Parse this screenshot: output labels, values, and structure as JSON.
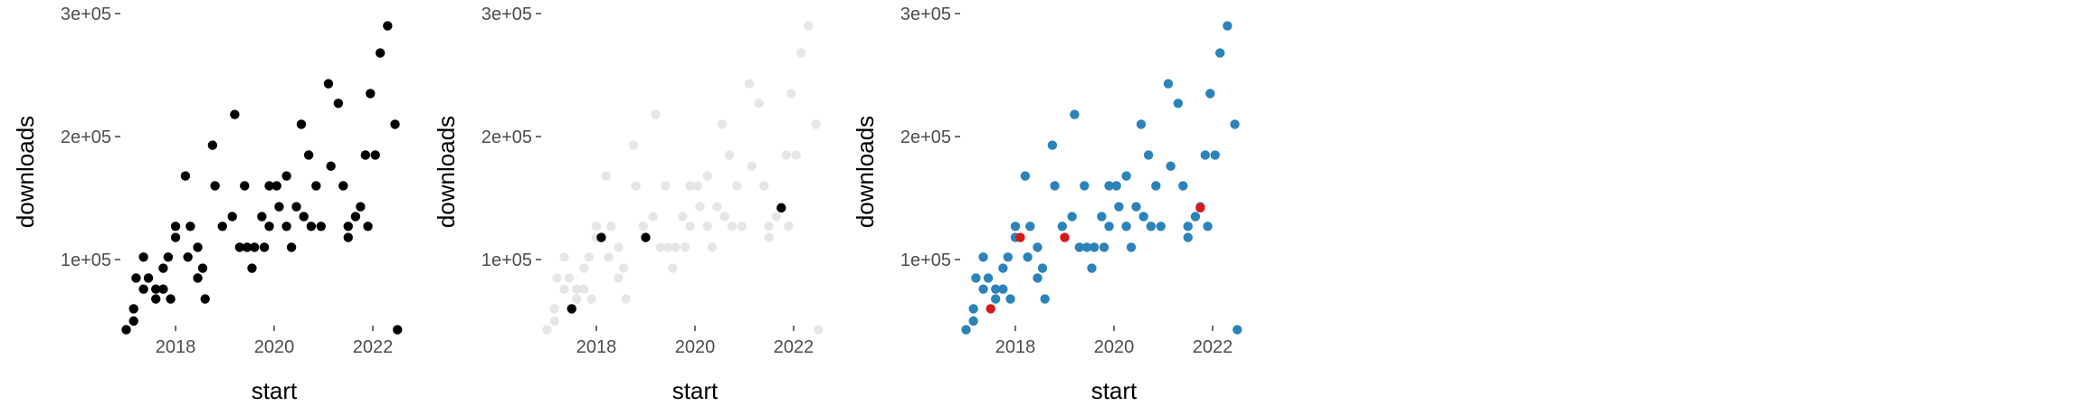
{
  "chart_data": [
    {
      "type": "scatter",
      "panel": "left",
      "xlabel": "start",
      "ylabel": "downloads",
      "x_ticks": [
        2018,
        2020,
        2022
      ],
      "y_ticks": [
        100000,
        200000,
        300000
      ],
      "y_tick_labels": [
        "1e+05",
        "2e+05",
        "3e+05"
      ],
      "xlim": [
        2016.8,
        2022.7
      ],
      "ylim": [
        35000,
        305000
      ],
      "grid": false,
      "point_color": "#000000",
      "highlight_color": "#000000",
      "highlight_points": []
    },
    {
      "type": "scatter",
      "panel": "middle",
      "xlabel": "start",
      "ylabel": "downloads",
      "x_ticks": [
        2018,
        2020,
        2022
      ],
      "y_ticks": [
        100000,
        200000,
        300000
      ],
      "y_tick_labels": [
        "1e+05",
        "2e+05",
        "3e+05"
      ],
      "xlim": [
        2016.8,
        2022.7
      ],
      "ylim": [
        35000,
        305000
      ],
      "grid": false,
      "point_color": "#e6e6e6",
      "highlight_color": "#000000",
      "highlight_points": [
        [
          2017.5,
          60000
        ],
        [
          2018.1,
          118000
        ],
        [
          2019.0,
          118000
        ],
        [
          2021.75,
          142000
        ]
      ]
    },
    {
      "type": "scatter",
      "panel": "right",
      "xlabel": "start",
      "ylabel": "downloads",
      "x_ticks": [
        2018,
        2020,
        2022
      ],
      "y_ticks": [
        100000,
        200000,
        300000
      ],
      "y_tick_labels": [
        "1e+05",
        "2e+05",
        "3e+05"
      ],
      "xlim": [
        2016.8,
        2022.7
      ],
      "ylim": [
        35000,
        305000
      ],
      "grid": false,
      "point_color": "#2b83ba",
      "highlight_color": "#d7191c",
      "highlight_points": [
        [
          2017.5,
          60000
        ],
        [
          2018.1,
          118000
        ],
        [
          2019.0,
          118000
        ],
        [
          2021.75,
          142000
        ]
      ]
    }
  ],
  "points": [
    [
      2017.0,
      43000
    ],
    [
      2017.15,
      50000
    ],
    [
      2017.15,
      60000
    ],
    [
      2017.2,
      85000
    ],
    [
      2017.35,
      102000
    ],
    [
      2017.35,
      76000
    ],
    [
      2017.45,
      85000
    ],
    [
      2017.6,
      68000
    ],
    [
      2017.6,
      76000
    ],
    [
      2017.75,
      76000
    ],
    [
      2017.75,
      93000
    ],
    [
      2017.85,
      102000
    ],
    [
      2017.9,
      68000
    ],
    [
      2018.0,
      127000
    ],
    [
      2018.0,
      118000
    ],
    [
      2018.2,
      168000
    ],
    [
      2018.25,
      102000
    ],
    [
      2018.3,
      127000
    ],
    [
      2018.45,
      110000
    ],
    [
      2018.45,
      85000
    ],
    [
      2018.55,
      93000
    ],
    [
      2018.6,
      68000
    ],
    [
      2018.75,
      193000
    ],
    [
      2018.8,
      160000
    ],
    [
      2018.95,
      127000
    ],
    [
      2019.15,
      135000
    ],
    [
      2019.2,
      218000
    ],
    [
      2019.3,
      110000
    ],
    [
      2019.4,
      160000
    ],
    [
      2019.45,
      110000
    ],
    [
      2019.55,
      93000
    ],
    [
      2019.6,
      110000
    ],
    [
      2019.75,
      135000
    ],
    [
      2019.8,
      110000
    ],
    [
      2019.9,
      160000
    ],
    [
      2019.9,
      127000
    ],
    [
      2020.05,
      160000
    ],
    [
      2020.1,
      143000
    ],
    [
      2020.25,
      168000
    ],
    [
      2020.25,
      127000
    ],
    [
      2020.35,
      110000
    ],
    [
      2020.45,
      143000
    ],
    [
      2020.55,
      210000
    ],
    [
      2020.6,
      135000
    ],
    [
      2020.7,
      185000
    ],
    [
      2020.75,
      127000
    ],
    [
      2020.85,
      160000
    ],
    [
      2020.95,
      127000
    ],
    [
      2021.1,
      243000
    ],
    [
      2021.15,
      176000
    ],
    [
      2021.3,
      227000
    ],
    [
      2021.4,
      160000
    ],
    [
      2021.5,
      127000
    ],
    [
      2021.5,
      118000
    ],
    [
      2021.65,
      135000
    ],
    [
      2021.75,
      143000
    ],
    [
      2021.85,
      185000
    ],
    [
      2021.9,
      127000
    ],
    [
      2021.95,
      235000
    ],
    [
      2022.05,
      185000
    ],
    [
      2022.15,
      268000
    ],
    [
      2022.3,
      290000
    ],
    [
      2022.45,
      210000
    ],
    [
      2022.5,
      43000
    ]
  ]
}
